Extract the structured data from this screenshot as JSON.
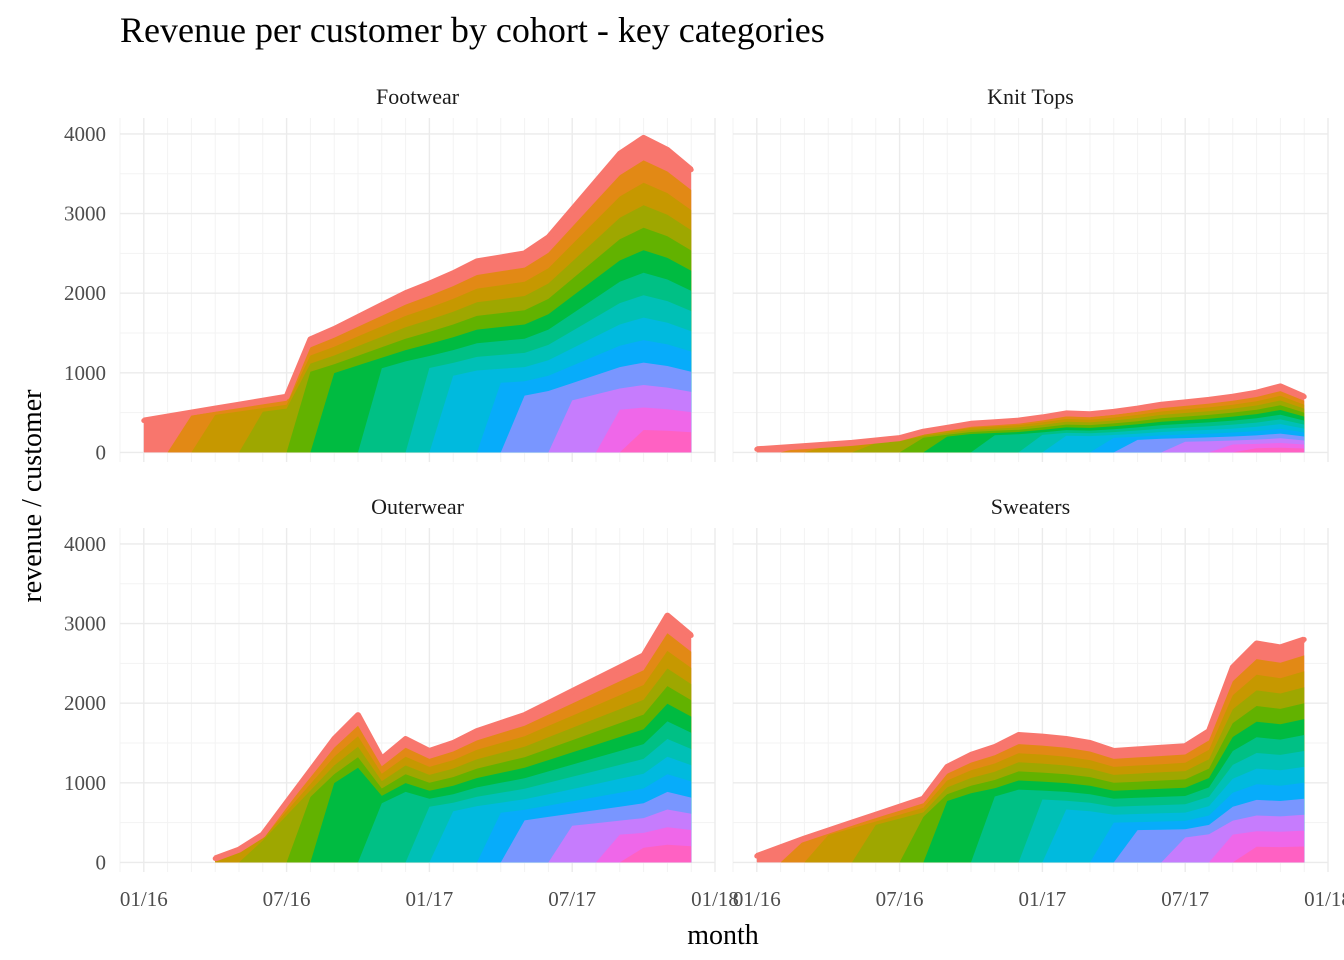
{
  "chart_data": {
    "type": "area",
    "title": "Revenue per customer by cohort - key categories",
    "xlabel": "month",
    "ylabel": "revenue / customer",
    "x_tick_labels": [
      "01/16",
      "07/16",
      "01/17",
      "07/17",
      "01/18"
    ],
    "y_tick_labels": [
      "0",
      "1000",
      "2000",
      "3000",
      "4000"
    ],
    "ylim": [
      -120,
      4200
    ],
    "xlim": [
      "2015-12",
      "2018-01"
    ],
    "grid": true,
    "facets_layout": "2x2 shared axes",
    "cohorts": [
      "2016-01",
      "2016-02",
      "2016-03",
      "2016-04",
      "2016-05",
      "2016-06",
      "2016-07",
      "2016-08",
      "2016-09",
      "2016-10",
      "2016-11",
      "2016-12",
      "2017-01",
      "2017-02",
      "2017-03",
      "2017-04",
      "2017-05",
      "2017-06",
      "2017-07",
      "2017-08",
      "2017-09",
      "2017-10",
      "2017-11",
      "2017-12"
    ],
    "facets": [
      {
        "name": "Footwear",
        "series": [
          {
            "x": "2016-01",
            "y": 400
          },
          {
            "x": "2016-02",
            "y": 450
          },
          {
            "x": "2016-03",
            "y": 500
          },
          {
            "x": "2016-04",
            "y": 550
          },
          {
            "x": "2016-05",
            "y": 600
          },
          {
            "x": "2016-06",
            "y": 650
          },
          {
            "x": "2016-07",
            "y": 700
          },
          {
            "x": "2016-08",
            "y": 1420
          },
          {
            "x": "2016-09",
            "y": 1550
          },
          {
            "x": "2016-10",
            "y": 1700
          },
          {
            "x": "2016-11",
            "y": 1850
          },
          {
            "x": "2016-12",
            "y": 2000
          },
          {
            "x": "2017-01",
            "y": 2120
          },
          {
            "x": "2017-02",
            "y": 2250
          },
          {
            "x": "2017-03",
            "y": 2400
          },
          {
            "x": "2017-04",
            "y": 2450
          },
          {
            "x": "2017-05",
            "y": 2500
          },
          {
            "x": "2017-06",
            "y": 2700
          },
          {
            "x": "2017-07",
            "y": 3050
          },
          {
            "x": "2017-08",
            "y": 3400
          },
          {
            "x": "2017-09",
            "y": 3750
          },
          {
            "x": "2017-10",
            "y": 3950
          },
          {
            "x": "2017-11",
            "y": 3800
          },
          {
            "x": "2017-12",
            "y": 3550
          }
        ]
      },
      {
        "name": "Knit Tops",
        "series": [
          {
            "x": "2016-01",
            "y": 40
          },
          {
            "x": "2016-02",
            "y": 60
          },
          {
            "x": "2016-03",
            "y": 80
          },
          {
            "x": "2016-04",
            "y": 100
          },
          {
            "x": "2016-05",
            "y": 120
          },
          {
            "x": "2016-06",
            "y": 150
          },
          {
            "x": "2016-07",
            "y": 180
          },
          {
            "x": "2016-08",
            "y": 260
          },
          {
            "x": "2016-09",
            "y": 310
          },
          {
            "x": "2016-10",
            "y": 360
          },
          {
            "x": "2016-11",
            "y": 380
          },
          {
            "x": "2016-12",
            "y": 400
          },
          {
            "x": "2017-01",
            "y": 440
          },
          {
            "x": "2017-02",
            "y": 490
          },
          {
            "x": "2017-03",
            "y": 480
          },
          {
            "x": "2017-04",
            "y": 510
          },
          {
            "x": "2017-05",
            "y": 550
          },
          {
            "x": "2017-06",
            "y": 600
          },
          {
            "x": "2017-07",
            "y": 630
          },
          {
            "x": "2017-08",
            "y": 660
          },
          {
            "x": "2017-09",
            "y": 700
          },
          {
            "x": "2017-10",
            "y": 750
          },
          {
            "x": "2017-11",
            "y": 830
          },
          {
            "x": "2017-12",
            "y": 700
          }
        ]
      },
      {
        "name": "Outerwear",
        "series": [
          {
            "x": "2016-01",
            "y": null
          },
          {
            "x": "2016-02",
            "y": null
          },
          {
            "x": "2016-03",
            "y": null
          },
          {
            "x": "2016-04",
            "y": 50
          },
          {
            "x": "2016-05",
            "y": 160
          },
          {
            "x": "2016-06",
            "y": 350
          },
          {
            "x": "2016-07",
            "y": 750
          },
          {
            "x": "2016-08",
            "y": 1150
          },
          {
            "x": "2016-09",
            "y": 1550
          },
          {
            "x": "2016-10",
            "y": 1850
          },
          {
            "x": "2016-11",
            "y": 1300
          },
          {
            "x": "2016-12",
            "y": 1550
          },
          {
            "x": "2017-01",
            "y": 1400
          },
          {
            "x": "2017-02",
            "y": 1500
          },
          {
            "x": "2017-03",
            "y": 1650
          },
          {
            "x": "2017-04",
            "y": 1750
          },
          {
            "x": "2017-05",
            "y": 1850
          },
          {
            "x": "2017-06",
            "y": 2000
          },
          {
            "x": "2017-07",
            "y": 2150
          },
          {
            "x": "2017-08",
            "y": 2300
          },
          {
            "x": "2017-09",
            "y": 2450
          },
          {
            "x": "2017-10",
            "y": 2600
          },
          {
            "x": "2017-11",
            "y": 3100
          },
          {
            "x": "2017-12",
            "y": 2850
          }
        ]
      },
      {
        "name": "Sweaters",
        "series": [
          {
            "x": "2016-01",
            "y": 80
          },
          {
            "x": "2016-02",
            "y": 190
          },
          {
            "x": "2016-03",
            "y": 300
          },
          {
            "x": "2016-04",
            "y": 400
          },
          {
            "x": "2016-05",
            "y": 500
          },
          {
            "x": "2016-06",
            "y": 600
          },
          {
            "x": "2016-07",
            "y": 700
          },
          {
            "x": "2016-08",
            "y": 800
          },
          {
            "x": "2016-09",
            "y": 1200
          },
          {
            "x": "2016-10",
            "y": 1350
          },
          {
            "x": "2016-11",
            "y": 1450
          },
          {
            "x": "2016-12",
            "y": 1600
          },
          {
            "x": "2017-01",
            "y": 1580
          },
          {
            "x": "2017-02",
            "y": 1550
          },
          {
            "x": "2017-03",
            "y": 1500
          },
          {
            "x": "2017-04",
            "y": 1400
          },
          {
            "x": "2017-05",
            "y": 1420
          },
          {
            "x": "2017-06",
            "y": 1440
          },
          {
            "x": "2017-07",
            "y": 1460
          },
          {
            "x": "2017-08",
            "y": 1650
          },
          {
            "x": "2017-09",
            "y": 2450
          },
          {
            "x": "2017-10",
            "y": 2750
          },
          {
            "x": "2017-11",
            "y": 2700
          },
          {
            "x": "2017-12",
            "y": 2800
          }
        ]
      }
    ]
  },
  "colors": {
    "cohort_palette": [
      "#F8766D",
      "#E7861B",
      "#D39200",
      "#B79F00",
      "#93AA00",
      "#5EB300",
      "#00BA38",
      "#00BF74",
      "#00C19F",
      "#00BFC4",
      "#00B9E3",
      "#00ADFA",
      "#619CFF",
      "#AE87FF",
      "#DB72FB",
      "#F564E3",
      "#FF61C3"
    ],
    "panel_background": "#ffffff",
    "grid": "#ebebeb"
  }
}
